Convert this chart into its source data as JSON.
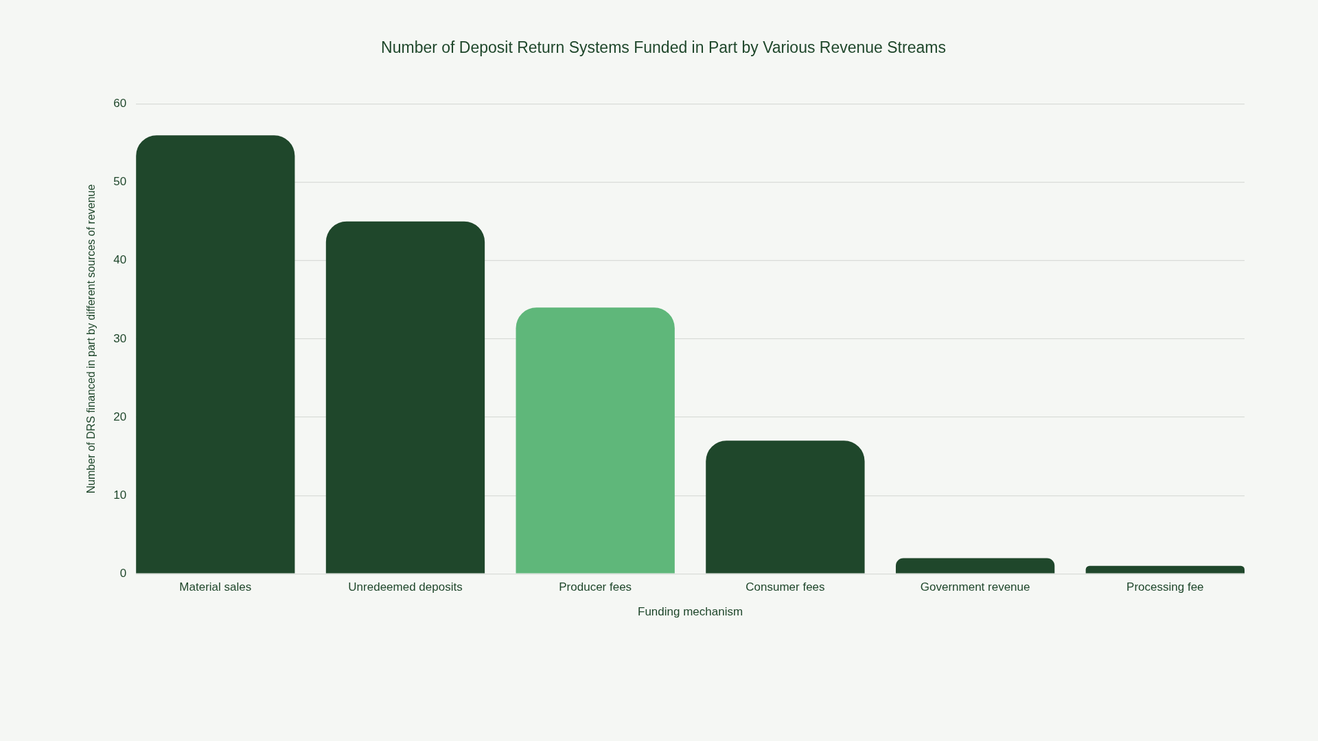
{
  "chart_data": {
    "type": "bar",
    "title": "Number of Deposit Return Systems Funded in Part by Various Revenue Streams",
    "xlabel": "Funding mechanism",
    "ylabel": "Number of DRS financed in part by different sources of revenue",
    "categories": [
      "Material sales",
      "Unredeemed deposits",
      "Producer fees",
      "Consumer fees",
      "Government revenue",
      "Processing fee"
    ],
    "values": [
      56,
      45,
      34,
      17,
      2,
      1
    ],
    "colors": [
      "#1f472b",
      "#1f472b",
      "#5fb77a",
      "#1f472b",
      "#1f472b",
      "#1f472b"
    ],
    "ylim": [
      0,
      60
    ],
    "yticks": [
      0,
      10,
      20,
      30,
      40,
      50,
      60
    ],
    "grid": "y"
  }
}
